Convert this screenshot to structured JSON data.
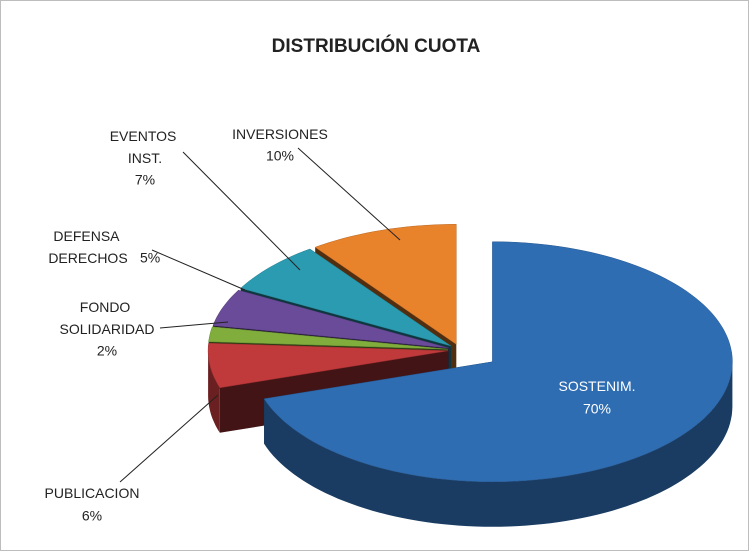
{
  "chart_data": {
    "type": "pie3d",
    "title": "DISTRIBUCIÓN CUOTA",
    "categories": [
      "SOSTENIM.",
      "PUBLICACION",
      "FONDO SOLIDARIDAD",
      "DEFENSA DERECHOS",
      "EVENTOS INST.",
      "INVERSIONES"
    ],
    "values": [
      70,
      6,
      2,
      5,
      7,
      10
    ],
    "value_labels": [
      "70%",
      "6%",
      "2%",
      "5%",
      "7%",
      "10%"
    ],
    "colors": [
      "#2f6db3",
      "#c0393b",
      "#80ad3c",
      "#6a4b9a",
      "#2b9bb1",
      "#e8822b"
    ]
  }
}
